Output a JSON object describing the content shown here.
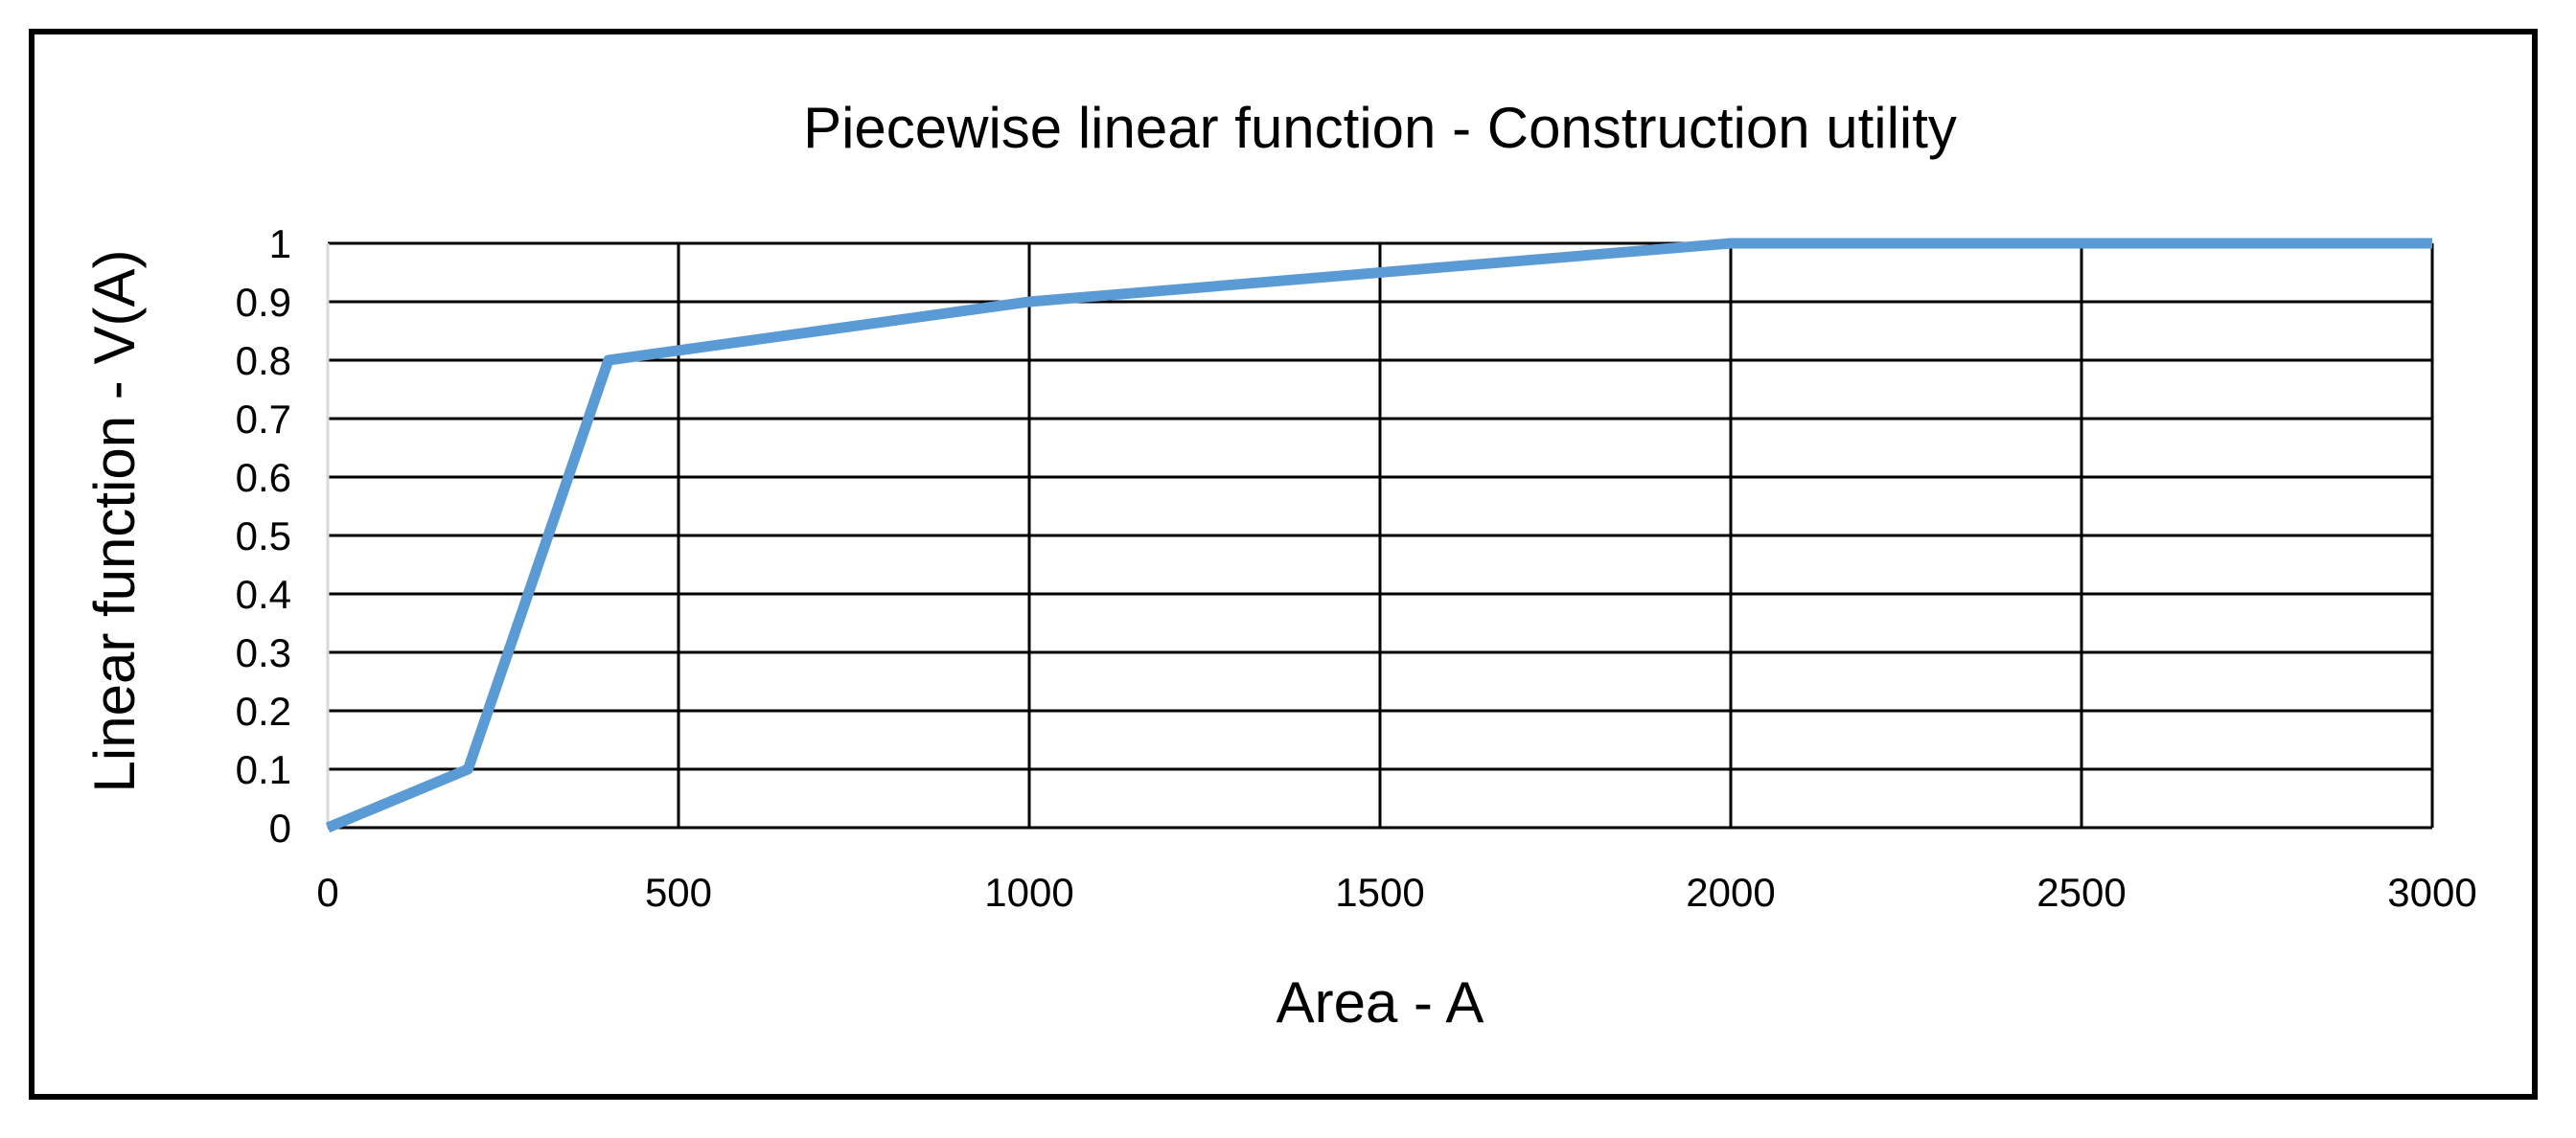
{
  "chart_data": {
    "type": "line",
    "title": "Piecewise linear function - Construction utility",
    "xlabel": "Area - A",
    "ylabel": "Linear function - V(A)",
    "xlim": [
      0,
      3000
    ],
    "ylim": [
      0,
      1
    ],
    "x_ticks": [
      "0",
      "500",
      "1000",
      "1500",
      "2000",
      "2500",
      "3000"
    ],
    "y_ticks": [
      "0",
      "0.1",
      "0.2",
      "0.3",
      "0.4",
      "0.5",
      "0.6",
      "0.7",
      "0.8",
      "0.9",
      "1"
    ],
    "grid": true,
    "legend": "none",
    "series": [
      {
        "color": "#5B9BD5",
        "x": [
          0,
          200,
          400,
          1000,
          2000,
          3000
        ],
        "y": [
          0,
          0.1,
          0.8,
          0.9,
          1.0,
          1.0
        ]
      }
    ]
  }
}
